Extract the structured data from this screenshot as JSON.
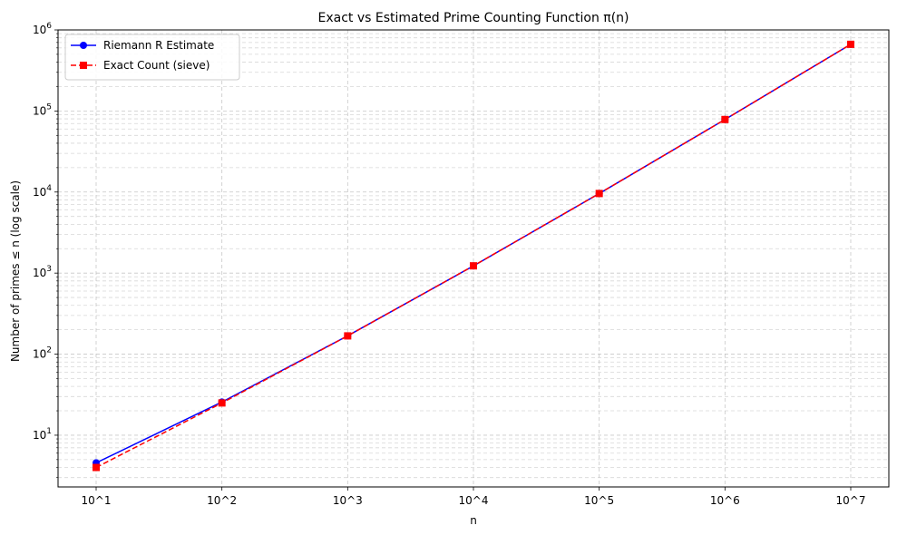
{
  "chart_data": {
    "type": "line",
    "title": "Exact vs Estimated Prime Counting Function π(n)",
    "xlabel": "n",
    "ylabel": "Number of primes ≤ n (log scale)",
    "categories": [
      "10^1",
      "10^2",
      "10^3",
      "10^4",
      "10^5",
      "10^6",
      "10^7"
    ],
    "y_scale": "log",
    "ylim": [
      2.3,
      1000000
    ],
    "y_ticks": [
      {
        "value": 10,
        "base": "10",
        "exp": "1"
      },
      {
        "value": 100,
        "base": "10",
        "exp": "2"
      },
      {
        "value": 1000,
        "base": "10",
        "exp": "3"
      },
      {
        "value": 10000,
        "base": "10",
        "exp": "4"
      },
      {
        "value": 100000,
        "base": "10",
        "exp": "5"
      },
      {
        "value": 1000000,
        "base": "10",
        "exp": "6"
      }
    ],
    "grid": true,
    "legend_position": "top-left",
    "series": [
      {
        "name": "Riemann R Estimate",
        "values": [
          4.56,
          25.66,
          168.36,
          1226.93,
          9587.43,
          78527.4,
          664667.4
        ],
        "color": "#0000ff",
        "line": "solid",
        "marker": "circle"
      },
      {
        "name": "Exact Count (sieve)",
        "values": [
          4,
          25,
          168,
          1229,
          9592,
          78498,
          664579
        ],
        "color": "#ff0000",
        "line": "dashed",
        "marker": "square"
      }
    ]
  }
}
